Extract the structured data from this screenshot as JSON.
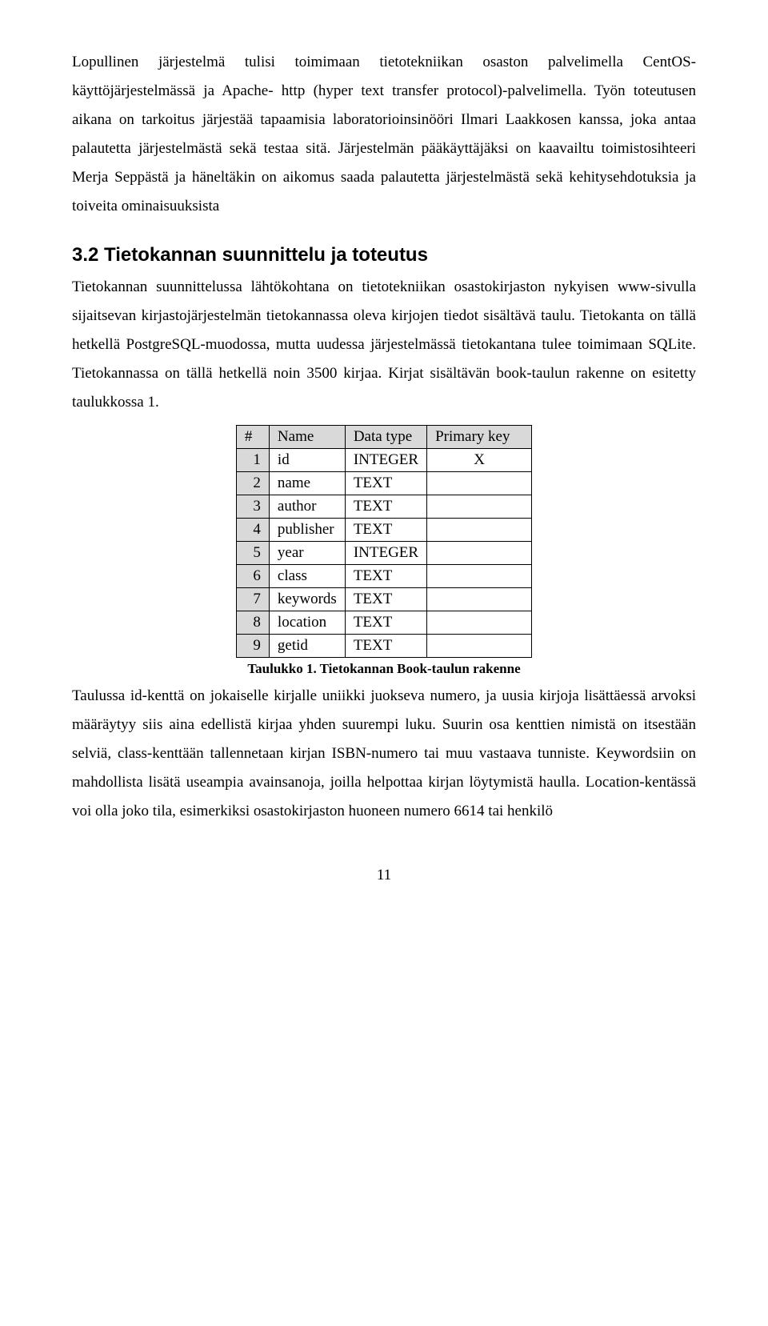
{
  "para1": "Lopullinen järjestelmä tulisi toimimaan tietotekniikan osaston palvelimella CentOS-käyttöjärjestelmässä ja Apache- http (hyper text transfer protocol)-palvelimella. Työn toteutusen aikana on tarkoitus järjestää tapaamisia laboratorioinsinööri Ilmari Laakkosen kanssa, joka antaa palautetta järjestelmästä sekä testaa sitä. Järjestelmän pääkäyttäjäksi on kaavailtu toimistosihteeri Merja Seppästä ja häneltäkin on aikomus saada palautetta järjestelmästä sekä kehitysehdotuksia ja toiveita ominaisuuksista",
  "section_heading": "3.2  Tietokannan suunnittelu ja toteutus",
  "para2": "Tietokannan suunnittelussa lähtökohtana on tietotekniikan osastokirjaston nykyisen www-sivulla sijaitsevan kirjastojärjestelmän tietokannassa oleva kirjojen tiedot sisältävä taulu. Tietokanta on tällä hetkellä PostgreSQL-muodossa, mutta uudessa järjestelmässä tietokantana tulee toimimaan SQLite. Tietokannassa on tällä hetkellä noin 3500 kirjaa. Kirjat sisältävän book-taulun rakenne on esitetty taulukkossa 1.",
  "table": {
    "headers": [
      "#",
      "Name",
      "Data type",
      "Primary key"
    ],
    "rows": [
      {
        "n": "1",
        "name": "id",
        "type": "INTEGER",
        "pk": "X"
      },
      {
        "n": "2",
        "name": "name",
        "type": "TEXT",
        "pk": ""
      },
      {
        "n": "3",
        "name": "author",
        "type": "TEXT",
        "pk": ""
      },
      {
        "n": "4",
        "name": "publisher",
        "type": "TEXT",
        "pk": ""
      },
      {
        "n": "5",
        "name": "year",
        "type": "INTEGER",
        "pk": ""
      },
      {
        "n": "6",
        "name": "class",
        "type": "TEXT",
        "pk": ""
      },
      {
        "n": "7",
        "name": "keywords",
        "type": "TEXT",
        "pk": ""
      },
      {
        "n": "8",
        "name": "location",
        "type": "TEXT",
        "pk": ""
      },
      {
        "n": "9",
        "name": "getid",
        "type": "TEXT",
        "pk": ""
      }
    ]
  },
  "caption": "Taulukko 1. Tietokannan Book-taulun rakenne",
  "para3": "Taulussa id-kenttä on jokaiselle kirjalle uniikki juokseva numero, ja uusia kirjoja lisättäessä arvoksi määräytyy siis aina edellistä kirjaa yhden suurempi luku. Suurin osa kenttien nimistä on itsestään selviä, class-kenttään tallennetaan kirjan ISBN-numero tai muu vastaava tunniste. Keywordsiin on mahdollista lisätä useampia avainsanoja, joilla helpottaa kirjan löytymistä haulla. Location-kentässä voi olla joko tila, esimerkiksi osastokirjaston huoneen numero 6614 tai henkilö",
  "page_number": "11"
}
